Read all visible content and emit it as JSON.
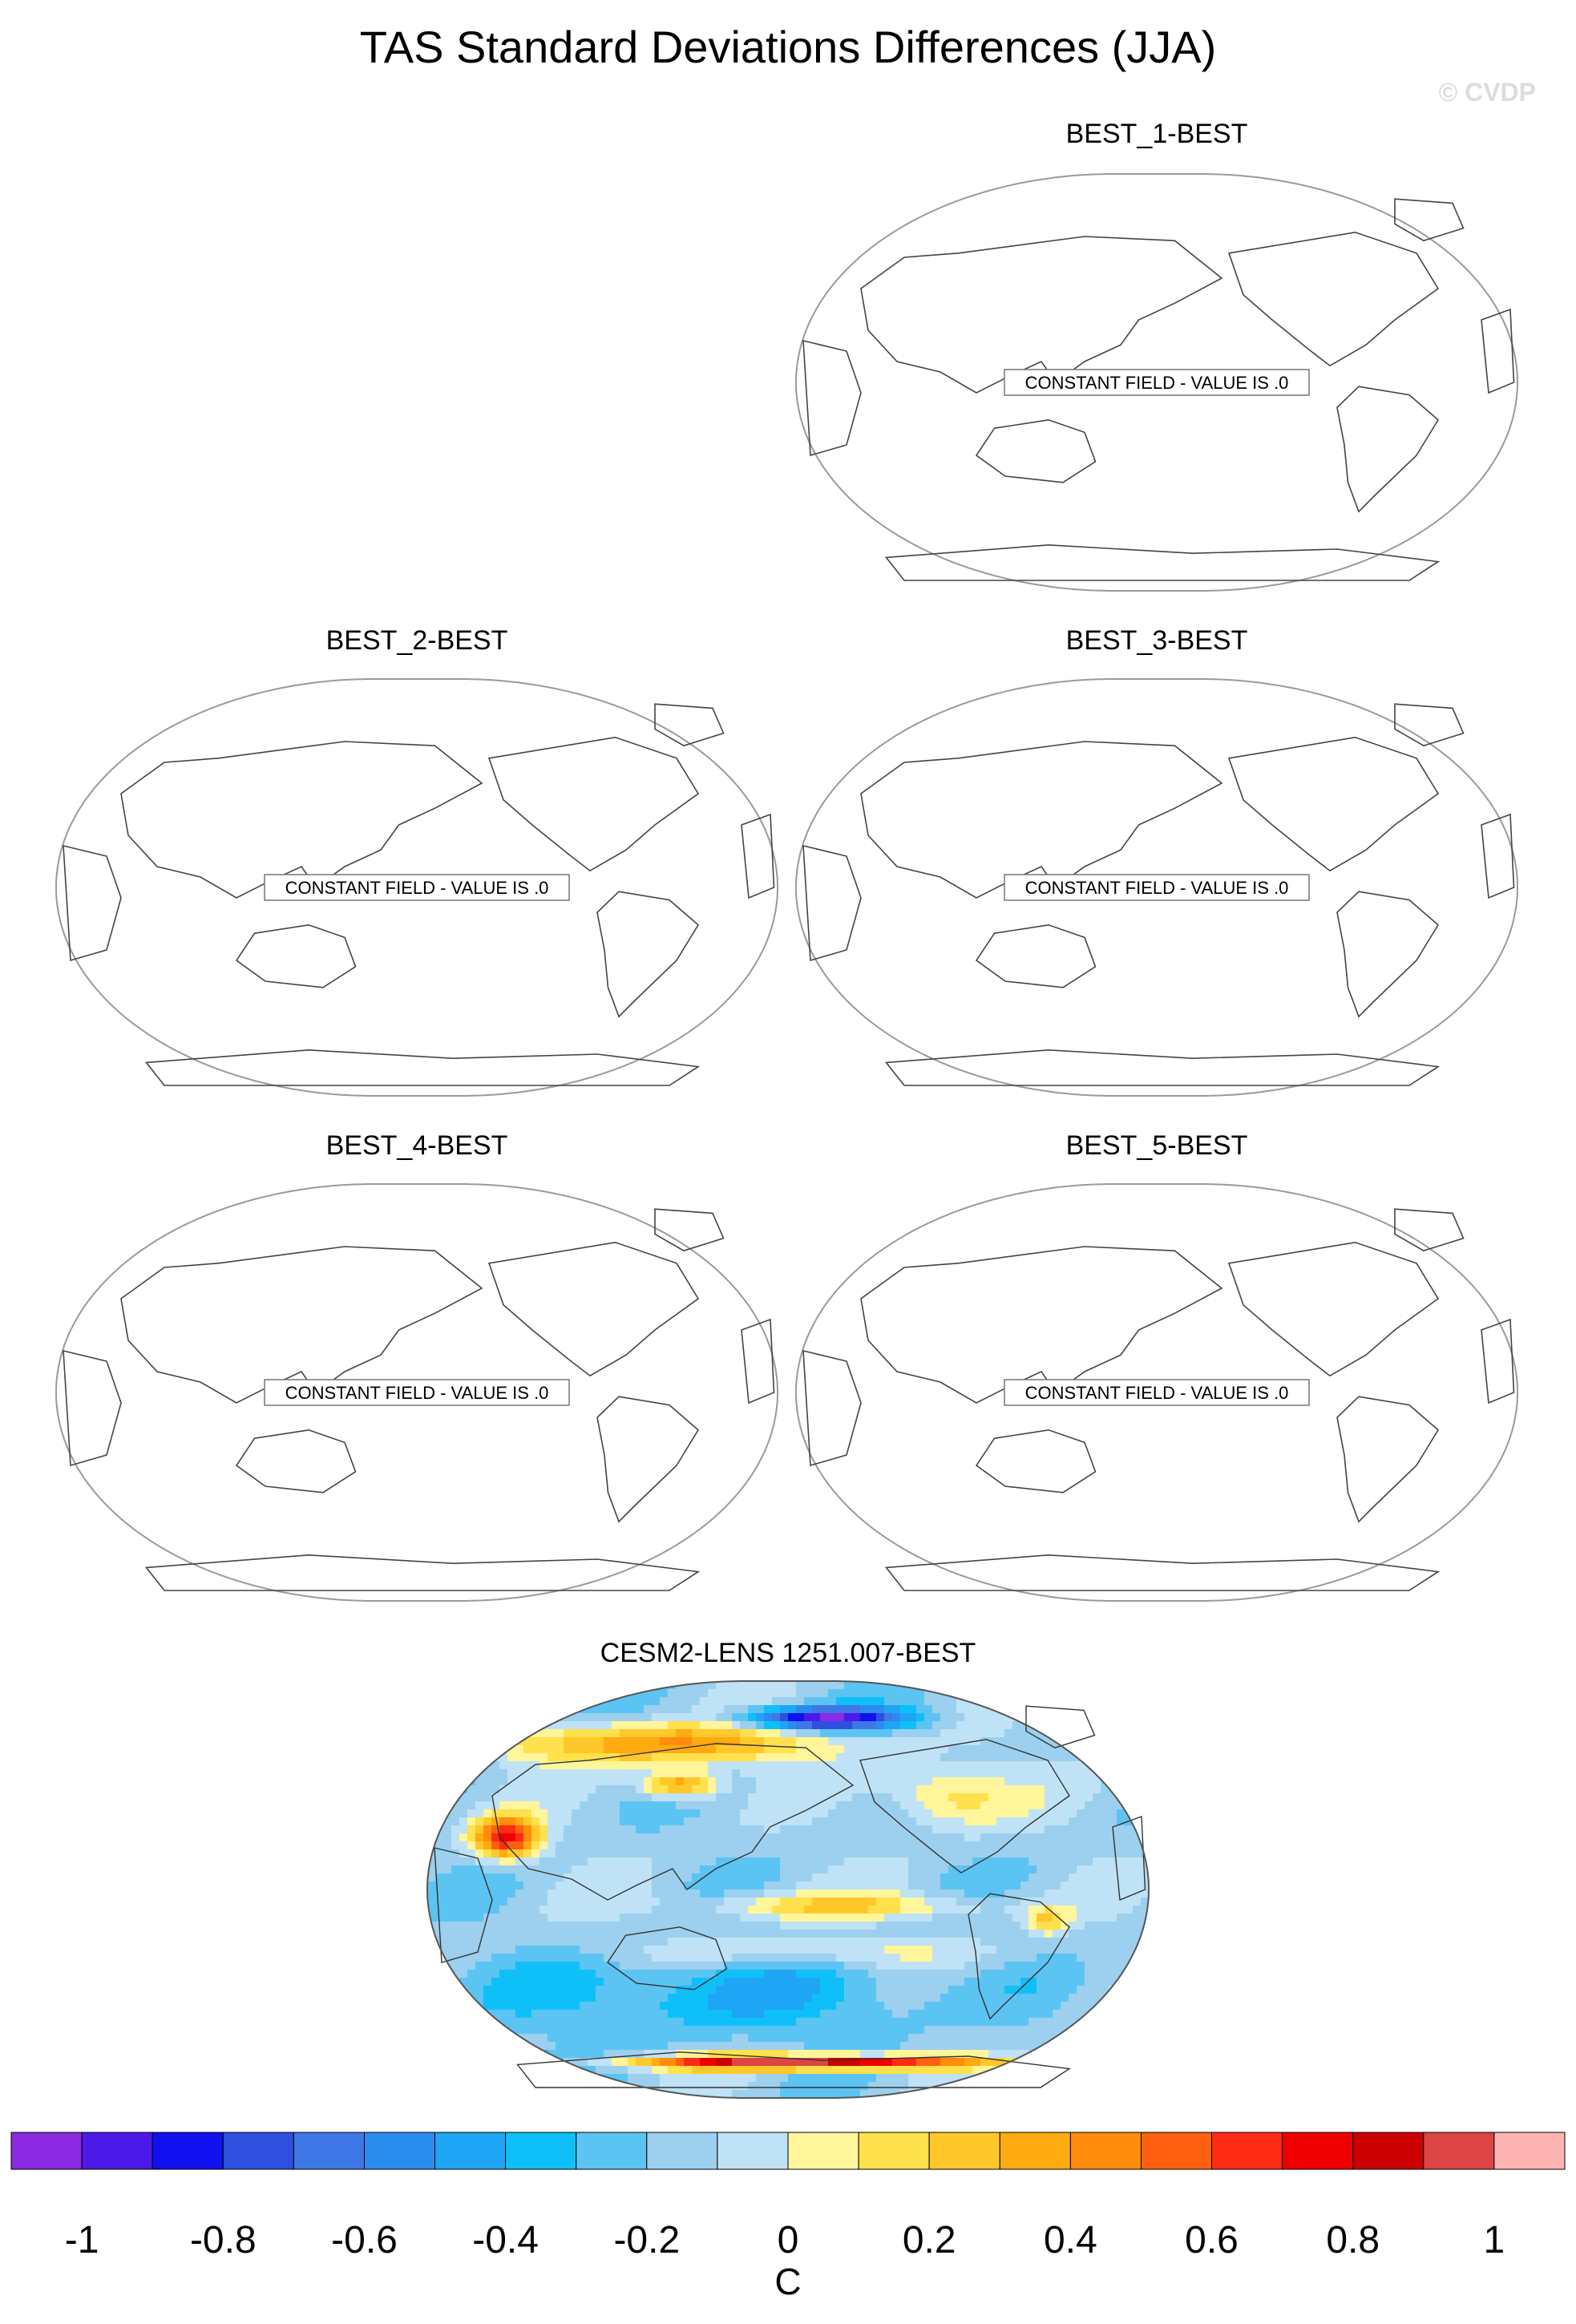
{
  "figure": {
    "title": "TAS Standard Deviations Differences (JJA)",
    "watermark": "© CVDP"
  },
  "chart_data": [
    {
      "type": "heatmap",
      "panel": "BEST_1-BEST",
      "title": "BEST_1-BEST",
      "constant_field": true,
      "value": 0,
      "annotation": "CONSTANT FIELD - VALUE IS .0"
    },
    {
      "type": "heatmap",
      "panel": "BEST_2-BEST",
      "title": "BEST_2-BEST",
      "constant_field": true,
      "value": 0,
      "annotation": "CONSTANT FIELD - VALUE IS .0"
    },
    {
      "type": "heatmap",
      "panel": "BEST_3-BEST",
      "title": "BEST_3-BEST",
      "constant_field": true,
      "value": 0,
      "annotation": "CONSTANT FIELD - VALUE IS .0"
    },
    {
      "type": "heatmap",
      "panel": "BEST_4-BEST",
      "title": "BEST_4-BEST",
      "constant_field": true,
      "value": 0,
      "annotation": "CONSTANT FIELD - VALUE IS .0"
    },
    {
      "type": "heatmap",
      "panel": "BEST_5-BEST",
      "title": "BEST_5-BEST",
      "constant_field": true,
      "value": 0,
      "annotation": "CONSTANT FIELD - VALUE IS .0"
    },
    {
      "type": "heatmap",
      "panel": "CESM2-LENS 1251.007-BEST",
      "title": "CESM2-LENS 1251.007-BEST",
      "constant_field": false,
      "value_range": [
        -1.1,
        1.1
      ]
    }
  ],
  "colorbar": {
    "unit": "C",
    "tick_labels": [
      "-1",
      "-0.8",
      "-0.6",
      "-0.4",
      "-0.2",
      "0",
      "0.2",
      "0.4",
      "0.6",
      "0.8",
      "1"
    ],
    "tick_values": [
      -1,
      -0.8,
      -0.6,
      -0.4,
      -0.2,
      0,
      0.2,
      0.4,
      0.6,
      0.8,
      1
    ],
    "levels": [
      -1,
      -0.9,
      -0.8,
      -0.7,
      -0.6,
      -0.5,
      -0.4,
      -0.3,
      -0.2,
      -0.1,
      0,
      0.1,
      0.2,
      0.3,
      0.4,
      0.5,
      0.6,
      0.7,
      0.8,
      0.9,
      1
    ],
    "colors": [
      "#8a2be2",
      "#4b1ae8",
      "#1010f0",
      "#2e4fe0",
      "#3d78e6",
      "#2b8cf0",
      "#1fa5f5",
      "#0fc0f8",
      "#5cc4f2",
      "#9cd0ee",
      "#bfe2f6",
      "#fff59a",
      "#ffe04d",
      "#ffc82a",
      "#ffaa10",
      "#ff8c0a",
      "#ff6010",
      "#ff2a14",
      "#ee0000",
      "#cc0000",
      "#dd4444",
      "#ffb4b4"
    ]
  }
}
